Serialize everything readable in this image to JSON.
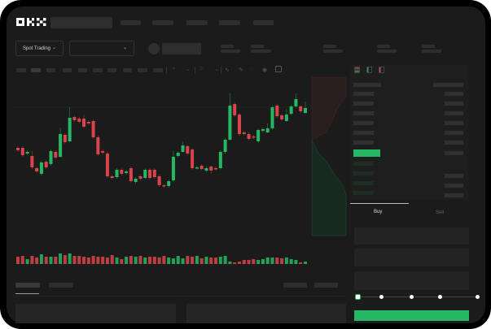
{
  "header": {
    "logo": "OKX"
  },
  "market": {
    "mode_label": "Spot Trading"
  },
  "trade": {
    "tabs": [
      "Buy",
      "Sell"
    ],
    "active_tab": "Buy",
    "slider_level_percent": 0,
    "slider_steps": [
      0,
      25,
      50,
      75,
      100
    ]
  },
  "colors": {
    "up": "#25b864",
    "down": "#d9444a",
    "background": "#1b1b1b"
  },
  "icons": [
    "chevron-down-icon",
    "orderbook-both-icon",
    "orderbook-bids-icon",
    "orderbook-asks-icon",
    "indicator-icon",
    "draw-icon",
    "camera-icon",
    "settings-icon",
    "fullscreen-icon"
  ],
  "chart_data": {
    "type": "candlestick",
    "candles": [
      [
        58,
        55
      ],
      [
        58,
        49
      ],
      [
        51,
        53
      ],
      [
        48,
        34,
        54,
        32
      ],
      [
        33,
        29
      ],
      [
        26,
        40
      ],
      [
        41,
        34
      ],
      [
        38,
        54
      ],
      [
        53,
        46
      ],
      [
        47,
        75,
        83,
        46
      ],
      [
        74,
        65
      ],
      [
        66,
        95,
        108,
        65
      ],
      [
        96,
        92
      ],
      [
        94,
        90
      ],
      [
        94,
        84,
        99,
        83
      ],
      [
        90,
        88
      ],
      [
        91,
        71
      ],
      [
        71,
        50
      ],
      [
        54,
        52
      ],
      [
        51,
        23
      ],
      [
        23,
        21
      ],
      [
        22,
        31
      ],
      [
        31,
        26
      ],
      [
        27,
        29
      ],
      [
        33,
        17
      ],
      [
        16,
        20
      ],
      [
        23,
        20
      ],
      [
        21,
        31
      ],
      [
        31,
        21
      ],
      [
        31,
        22
      ],
      [
        23,
        12
      ],
      [
        12,
        11
      ],
      [
        11,
        17
      ],
      [
        18,
        47,
        55,
        16
      ],
      [
        48,
        52
      ],
      [
        53,
        61,
        66,
        52
      ],
      [
        60,
        51
      ],
      [
        56,
        33
      ],
      [
        33,
        34
      ],
      [
        36,
        32
      ],
      [
        30,
        33
      ],
      [
        35,
        30,
        36,
        26
      ],
      [
        33,
        32
      ],
      [
        33,
        53
      ],
      [
        53,
        68
      ],
      [
        68,
        110,
        125,
        67
      ],
      [
        112,
        98
      ],
      [
        99,
        75
      ],
      [
        77,
        75
      ],
      [
        75,
        69
      ],
      [
        72,
        71
      ],
      [
        66,
        80
      ],
      [
        79,
        81
      ],
      [
        77,
        82,
        88,
        76
      ],
      [
        82,
        108
      ],
      [
        110,
        97
      ],
      [
        98,
        93
      ],
      [
        91,
        99,
        106,
        90
      ],
      [
        100,
        109
      ],
      [
        109,
        118,
        125,
        108
      ],
      [
        109,
        103
      ],
      [
        101,
        107,
        115,
        100
      ]
    ],
    "volume": [
      9,
      10,
      6,
      10,
      8,
      12,
      9,
      9,
      9,
      13,
      11,
      13,
      10,
      10,
      9,
      8,
      10,
      9,
      9,
      8,
      11,
      8,
      6,
      9,
      10,
      9,
      10,
      8,
      9,
      9,
      8,
      10,
      8,
      7,
      10,
      7,
      10,
      9,
      10,
      7,
      9,
      8,
      8,
      9,
      10,
      3,
      2,
      3,
      5,
      5,
      6,
      5,
      6,
      8,
      8,
      8,
      7,
      8,
      6,
      5,
      2,
      3
    ],
    "grid": false
  }
}
